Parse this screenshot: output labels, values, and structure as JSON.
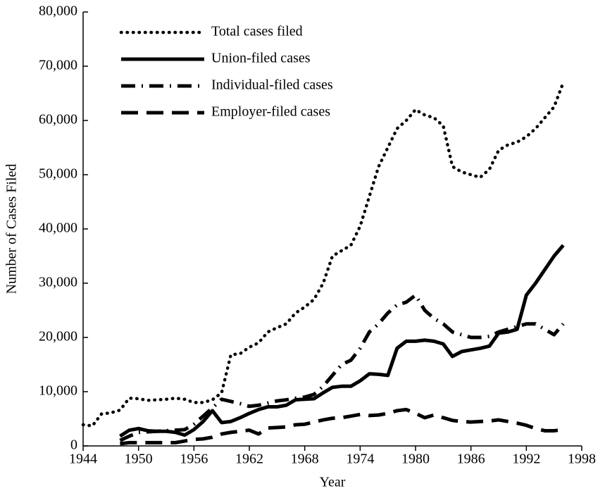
{
  "chart_data": {
    "type": "line",
    "xlabel": "Year",
    "ylabel": "Number of Cases Filed",
    "x": [
      1944,
      1945,
      1946,
      1947,
      1948,
      1949,
      1950,
      1951,
      1952,
      1953,
      1954,
      1955,
      1956,
      1957,
      1958,
      1959,
      1960,
      1961,
      1962,
      1963,
      1964,
      1965,
      1966,
      1967,
      1968,
      1969,
      1970,
      1971,
      1972,
      1973,
      1974,
      1975,
      1976,
      1977,
      1978,
      1979,
      1980,
      1981,
      1982,
      1983,
      1984,
      1985,
      1986,
      1987,
      1988,
      1989,
      1990,
      1991,
      1992,
      1993,
      1994,
      1995,
      1996
    ],
    "series": [
      {
        "name": "Total cases filed",
        "color": "#000000",
        "dash": "dotted",
        "values": [
          3900,
          3700,
          5900,
          6100,
          6600,
          8800,
          8700,
          8400,
          8500,
          8600,
          8800,
          8600,
          8000,
          8000,
          8500,
          9800,
          16800,
          17000,
          18200,
          19000,
          21000,
          21800,
          22500,
          24500,
          25600,
          27000,
          30000,
          35000,
          36000,
          37000,
          40500,
          46000,
          51500,
          55000,
          58500,
          60000,
          62000,
          61000,
          60500,
          59000,
          51500,
          50500,
          50000,
          49500,
          51000,
          54500,
          55500,
          56000,
          57000,
          58500,
          60500,
          62500,
          67000
        ]
      },
      {
        "name": "Union-filed cases",
        "color": "#000000",
        "dash": "solid",
        "values": [
          null,
          null,
          null,
          null,
          1800,
          2900,
          3200,
          2800,
          2700,
          2700,
          2500,
          2000,
          3000,
          4500,
          6500,
          4300,
          4500,
          5200,
          6000,
          6700,
          7200,
          7200,
          7500,
          8500,
          8600,
          8700,
          9800,
          10800,
          11000,
          11000,
          12000,
          13300,
          13200,
          13000,
          18000,
          19300,
          19300,
          19500,
          19300,
          18800,
          16500,
          17400,
          17700,
          18000,
          18400,
          20800,
          21000,
          21500,
          27800,
          30000,
          32500,
          35000,
          37000
        ]
      },
      {
        "name": "Individual-filed cases",
        "color": "#000000",
        "dash": "dash-dot",
        "values": [
          null,
          null,
          null,
          null,
          1000,
          1800,
          2500,
          2600,
          2700,
          2800,
          2900,
          3000,
          4000,
          5500,
          7000,
          8600,
          8200,
          7800,
          7300,
          7500,
          7900,
          8300,
          8500,
          8800,
          9000,
          9500,
          11000,
          13000,
          15000,
          15800,
          18000,
          21000,
          22500,
          24500,
          26000,
          26500,
          27800,
          25000,
          23500,
          22500,
          21000,
          20500,
          20000,
          20000,
          20200,
          21000,
          21500,
          22000,
          22500,
          22500,
          21500,
          20500,
          22500
        ]
      },
      {
        "name": "Employer-filed cases",
        "color": "#000000",
        "dash": "dashed",
        "values": [
          null,
          null,
          null,
          null,
          400,
          600,
          600,
          600,
          600,
          600,
          600,
          900,
          1200,
          1300,
          1600,
          2200,
          2500,
          2700,
          2900,
          2200,
          3300,
          3400,
          3500,
          3900,
          4000,
          4400,
          4800,
          5100,
          5200,
          5500,
          5800,
          5600,
          5700,
          6000,
          6500,
          6700,
          6000,
          5200,
          5700,
          5200,
          4700,
          4500,
          4400,
          4500,
          4600,
          4800,
          4500,
          4200,
          3800,
          3200,
          2800,
          2800,
          3000
        ]
      }
    ],
    "xlim": [
      1944,
      1998
    ],
    "xticks": [
      1944,
      1950,
      1956,
      1962,
      1968,
      1974,
      1980,
      1986,
      1992,
      1998
    ],
    "ylim": [
      0,
      80000
    ],
    "yticks": [
      0,
      {
        "value": 10000,
        "label": "10,000"
      },
      {
        "value": 20000,
        "label": "20,000"
      },
      {
        "value": 30000,
        "label": "30,000"
      },
      {
        "value": 40000,
        "label": "40,000"
      },
      {
        "value": 50000,
        "label": "50,000"
      },
      {
        "value": 60000,
        "label": "60,000"
      },
      {
        "value": 70000,
        "label": "70,000"
      },
      {
        "value": 80000,
        "label": "80,000"
      }
    ],
    "legend": "upper left",
    "grid": false
  }
}
